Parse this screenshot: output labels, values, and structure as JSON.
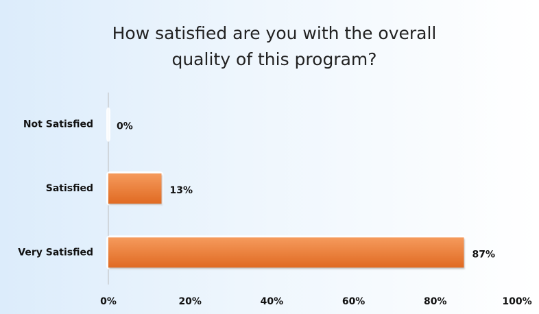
{
  "chart_data": {
    "type": "bar",
    "orientation": "horizontal",
    "title": "How satisfied are you with the overall quality of this program?",
    "categories": [
      "Not Satisfied",
      "Satisfied",
      "Very Satisfied"
    ],
    "values": [
      0,
      13,
      87
    ],
    "value_labels": [
      "0%",
      "13%",
      "87%"
    ],
    "color": "#ee7d35",
    "xlim": [
      0,
      100
    ],
    "xticks": [
      {
        "value": 0,
        "label": "0%"
      },
      {
        "value": 20,
        "label": "20%"
      },
      {
        "value": 40,
        "label": "40%"
      },
      {
        "value": 60,
        "label": "60%"
      },
      {
        "value": 80,
        "label": "80%"
      },
      {
        "value": 100,
        "label": "100%"
      }
    ],
    "grid": false
  }
}
